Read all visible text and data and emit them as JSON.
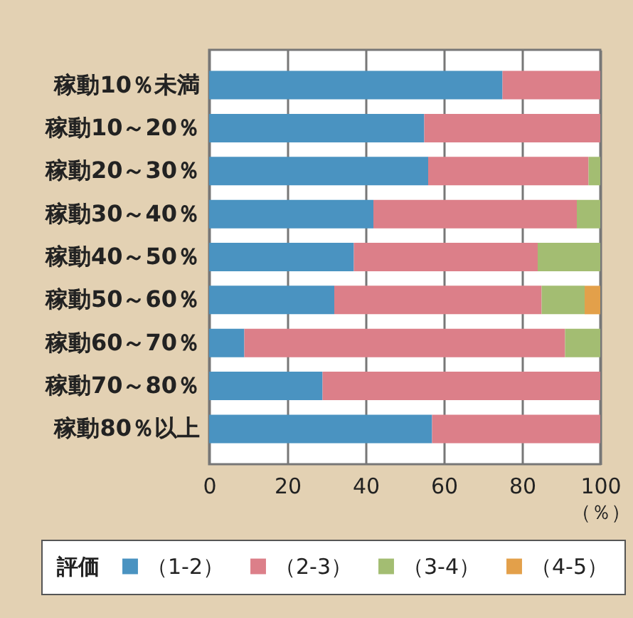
{
  "chart_data": {
    "type": "bar",
    "orientation": "horizontal",
    "stacked": true,
    "categories": [
      "稼動10％未満",
      "稼動10～20％",
      "稼動20～30％",
      "稼動30～40％",
      "稼動40～50％",
      "稼動50～60％",
      "稼動60～70％",
      "稼動70～80％",
      "稼動80％以上"
    ],
    "series": [
      {
        "name": "（1-2）",
        "color": "#4a93c1",
        "values": [
          75,
          55,
          56,
          42,
          37,
          32,
          9,
          29,
          57
        ]
      },
      {
        "name": "（2-3）",
        "color": "#dc7f89",
        "values": [
          25,
          45,
          41,
          52,
          47,
          53,
          82,
          71,
          43
        ]
      },
      {
        "name": "（3-4）",
        "color": "#a3bd72",
        "values": [
          null,
          null,
          3,
          6,
          16,
          11,
          9,
          null,
          null
        ]
      },
      {
        "name": "（4-5）",
        "color": "#e3a04a",
        "values": [
          null,
          null,
          null,
          null,
          null,
          4,
          null,
          null,
          null
        ]
      }
    ],
    "xlim": [
      0,
      100
    ],
    "xticks": [
      0,
      20,
      40,
      60,
      80,
      100
    ],
    "xlabel": "（％）",
    "legend_title": "評価",
    "legend": "bottom",
    "grid": "x"
  }
}
